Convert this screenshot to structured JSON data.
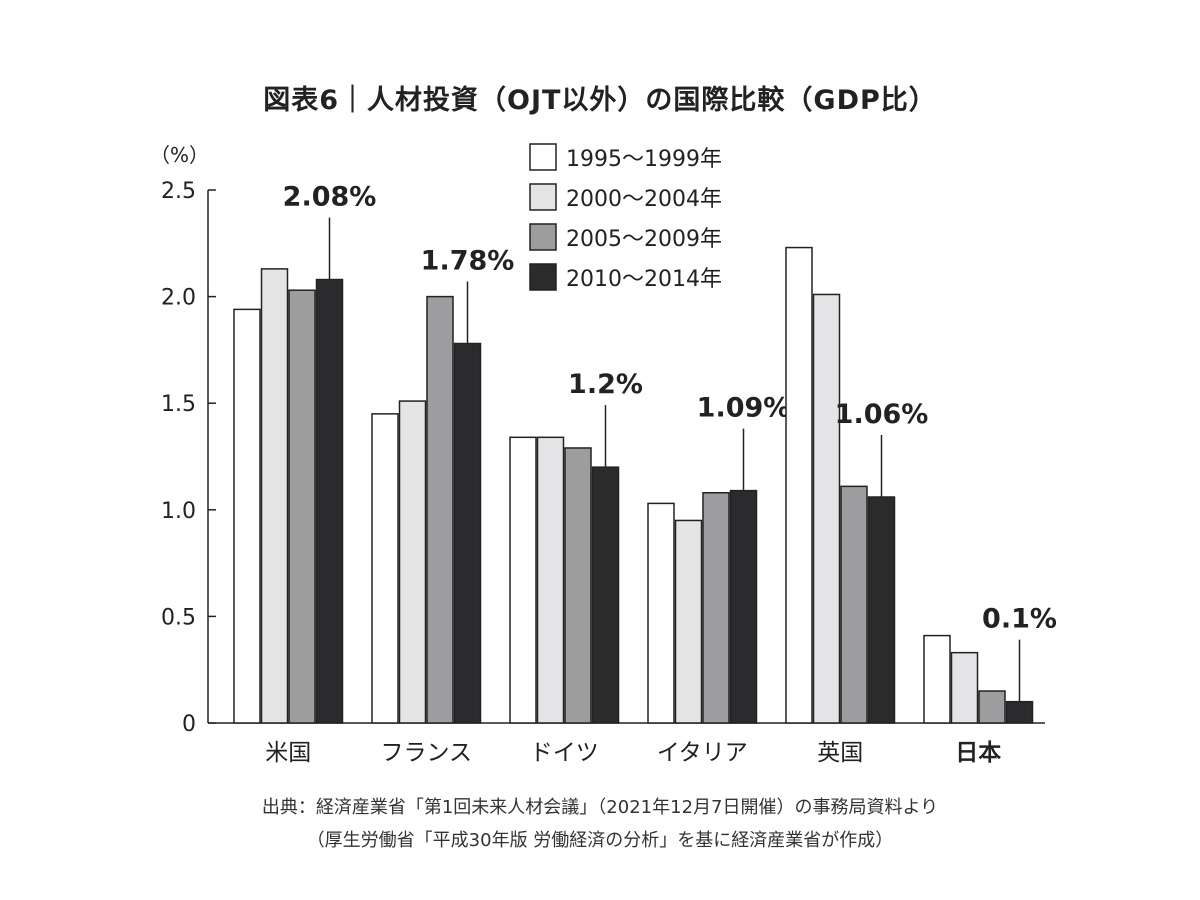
{
  "chart_data": {
    "type": "bar",
    "title": "図表6｜人材投資（OJT以外）の国際比較（GDP比）",
    "ylabel": "（%）",
    "ylim": [
      0,
      2.5
    ],
    "yticks": [
      "0",
      "0.5",
      "1.0",
      "1.5",
      "2.0",
      "2.5"
    ],
    "ytick_values": [
      0,
      0.5,
      1.0,
      1.5,
      2.0,
      2.5
    ],
    "categories": [
      "米国",
      "フランス",
      "ドイツ",
      "イタリア",
      "英国",
      "日本"
    ],
    "bold_category": "日本",
    "series": [
      {
        "name": "1995〜1999年",
        "color": "#ffffff",
        "values": [
          1.94,
          1.45,
          1.34,
          1.03,
          2.23,
          0.41
        ]
      },
      {
        "name": "2000〜2004年",
        "color": "#e4e4e6",
        "values": [
          2.13,
          1.51,
          1.34,
          0.95,
          2.01,
          0.33
        ]
      },
      {
        "name": "2005〜2009年",
        "color": "#9d9d9f",
        "values": [
          2.03,
          2.0,
          1.29,
          1.08,
          1.11,
          0.15
        ]
      },
      {
        "name": "2010〜2014年",
        "color": "#2b2b2e",
        "values": [
          2.08,
          1.78,
          1.2,
          1.09,
          1.06,
          0.1
        ]
      }
    ],
    "annotations": [
      "2.08%",
      "1.78%",
      "1.2%",
      "1.09%",
      "1.06%",
      "0.1%"
    ],
    "legend": "top-center",
    "grid": false
  },
  "source": {
    "line1": "出典：経済産業省「第1回未来人材会議」（2021年12月7日開催）の事務局資料より",
    "line2": "（厚生労働省「平成30年版 労働経済の分析」を基に経済産業省が作成）"
  }
}
